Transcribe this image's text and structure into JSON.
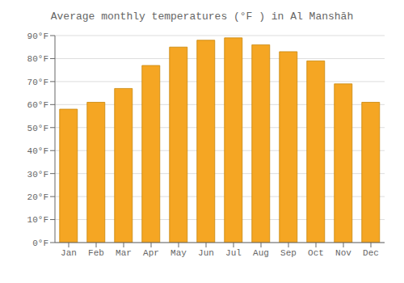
{
  "chart_data": {
    "type": "bar",
    "title": "Average monthly temperatures (°F ) in Al Manshāh",
    "categories": [
      "Jan",
      "Feb",
      "Mar",
      "Apr",
      "May",
      "Jun",
      "Jul",
      "Aug",
      "Sep",
      "Oct",
      "Nov",
      "Dec"
    ],
    "values": [
      58,
      61,
      67,
      77,
      85,
      88,
      89,
      86,
      83,
      79,
      69,
      61
    ],
    "color": "#F5A623",
    "ylim": [
      0,
      90
    ],
    "yticks": [
      {
        "value": 0,
        "label": "0°F"
      },
      {
        "value": 10,
        "label": "10°F"
      },
      {
        "value": 20,
        "label": "20°F"
      },
      {
        "value": 30,
        "label": "30°F"
      },
      {
        "value": 40,
        "label": "40°F"
      },
      {
        "value": 50,
        "label": "50°F"
      },
      {
        "value": 60,
        "label": "60°F"
      },
      {
        "value": 70,
        "label": "70°F"
      },
      {
        "value": 80,
        "label": "80°F"
      },
      {
        "value": 90,
        "label": "90°F"
      }
    ],
    "grid": true
  }
}
